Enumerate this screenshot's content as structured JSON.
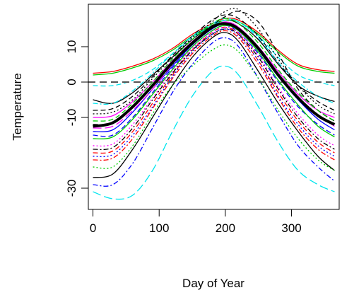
{
  "chart_data": {
    "type": "line",
    "xlabel": "Day of Year",
    "ylabel": "Temperature",
    "xlim": [
      -7,
      372
    ],
    "ylim": [
      -36,
      22
    ],
    "xticks": [
      0,
      100,
      200,
      300
    ],
    "yticks": [
      -30,
      -10,
      0,
      10
    ],
    "grid": false,
    "legend": "none",
    "reference_line": {
      "y": 0,
      "style": "dashed",
      "color": "#555555"
    },
    "mean_curve": {
      "color": "#000000",
      "x": [
        0,
        30,
        60,
        90,
        120,
        150,
        180,
        200,
        220,
        250,
        280,
        310,
        340,
        365
      ],
      "values": [
        -12.5,
        -11.5,
        -7,
        -1,
        5.5,
        11,
        15.5,
        16.5,
        15,
        9.5,
        2,
        -4.5,
        -9.5,
        -12
      ]
    },
    "series": [
      {
        "color": "#000000",
        "style": "solid",
        "x": [
          0,
          30,
          60,
          90,
          120,
          150,
          180,
          200,
          220,
          250,
          280,
          310,
          340,
          365
        ],
        "values": [
          -27,
          -26,
          -19,
          -10,
          -1,
          7,
          12.5,
          14,
          11.5,
          3,
          -6,
          -14,
          -21,
          -25
        ]
      },
      {
        "color": "#000000",
        "style": "solid",
        "x": [
          0,
          30,
          60,
          90,
          120,
          150,
          180,
          200,
          220,
          250,
          280,
          310,
          340,
          365
        ],
        "values": [
          -5,
          -6,
          -3,
          2,
          7,
          12,
          16,
          17.5,
          16.5,
          12,
          5,
          -1,
          -4,
          -5.5
        ]
      },
      {
        "color": "#ff0000",
        "style": "solid",
        "x": [
          0,
          30,
          60,
          90,
          120,
          150,
          180,
          200,
          220,
          250,
          280,
          310,
          340,
          365
        ],
        "values": [
          2.5,
          3,
          4.5,
          6.5,
          9.5,
          13.5,
          16.5,
          18,
          17.5,
          14,
          9,
          5,
          3.5,
          3
        ]
      },
      {
        "color": "#00cc00",
        "style": "solid",
        "x": [
          0,
          30,
          60,
          90,
          120,
          150,
          180,
          200,
          220,
          250,
          280,
          310,
          340,
          365
        ],
        "values": [
          2,
          2.5,
          4,
          6,
          9,
          13,
          16,
          17.5,
          17,
          13.5,
          8.5,
          4.5,
          3,
          2.5
        ]
      },
      {
        "color": "#0000ff",
        "style": "dashdot",
        "x": [
          0,
          30,
          60,
          90,
          120,
          150,
          180,
          200,
          220,
          250,
          280,
          310,
          340,
          365
        ],
        "values": [
          -29,
          -29,
          -23,
          -13,
          -3,
          5,
          11,
          12.5,
          10,
          1,
          -9,
          -18,
          -24,
          -28
        ]
      },
      {
        "color": "#00e5ee",
        "style": "longdash",
        "x": [
          0,
          30,
          60,
          90,
          120,
          150,
          180,
          200,
          220,
          250,
          280,
          310,
          340,
          365
        ],
        "values": [
          -31,
          -33,
          -32,
          -25,
          -14,
          -4,
          3,
          4.5,
          2,
          -7,
          -17,
          -25,
          -29,
          -31
        ]
      },
      {
        "color": "#00e5ee",
        "style": "dashed",
        "x": [
          0,
          30,
          60,
          90,
          120,
          150,
          180,
          200,
          220,
          250,
          280,
          310,
          340,
          365
        ],
        "values": [
          -1,
          -1,
          0.5,
          3.5,
          8,
          12.5,
          16,
          17.5,
          17,
          13,
          7,
          2,
          0,
          -1
        ]
      },
      {
        "color": "#ff0000",
        "style": "dashed",
        "x": [
          0,
          30,
          60,
          90,
          120,
          150,
          180,
          200,
          220,
          250,
          280,
          310,
          340,
          365
        ],
        "values": [
          -20,
          -19.5,
          -14,
          -6,
          2,
          9,
          14,
          15.5,
          13.5,
          6,
          -3,
          -11,
          -17,
          -20
        ]
      },
      {
        "color": "#00cc00",
        "style": "dotted",
        "x": [
          0,
          30,
          60,
          90,
          120,
          150,
          180,
          200,
          220,
          250,
          280,
          310,
          340,
          365
        ],
        "values": [
          -24,
          -24,
          -18,
          -9,
          -1,
          4.5,
          9,
          10.5,
          8.5,
          1,
          -8,
          -16,
          -22,
          -25
        ]
      },
      {
        "color": "#ff00ff",
        "style": "solid",
        "x": [
          0,
          30,
          60,
          90,
          120,
          150,
          180,
          200,
          220,
          250,
          280,
          310,
          340,
          365
        ],
        "values": [
          -10,
          -9.5,
          -5.5,
          0,
          6,
          11.5,
          15.5,
          17,
          15.5,
          10,
          3,
          -3.5,
          -8,
          -10
        ]
      },
      {
        "color": "#0000ff",
        "style": "dashed",
        "x": [
          0,
          30,
          60,
          90,
          120,
          150,
          180,
          200,
          220,
          250,
          280,
          310,
          340,
          365
        ],
        "values": [
          -15,
          -15,
          -10,
          -3,
          4,
          10,
          14.5,
          16,
          14,
          8,
          0,
          -7,
          -12,
          -15
        ]
      },
      {
        "color": "#000000",
        "style": "dashed",
        "x": [
          0,
          30,
          60,
          90,
          120,
          150,
          180,
          200,
          220,
          250,
          280,
          310,
          340,
          365
        ],
        "values": [
          -8,
          -7.5,
          -4,
          1.5,
          7.5,
          13,
          17.5,
          19,
          18,
          13,
          5.5,
          -1,
          -5.5,
          -8
        ]
      },
      {
        "color": "#ff00ff",
        "style": "dotted",
        "x": [
          0,
          30,
          60,
          90,
          120,
          150,
          180,
          200,
          220,
          250,
          280,
          310,
          340,
          365
        ],
        "values": [
          -18,
          -17.5,
          -12,
          -4.5,
          3,
          9.5,
          14,
          15.5,
          14,
          7.5,
          -1.5,
          -9,
          -15,
          -18
        ]
      },
      {
        "color": "#000000",
        "style": "dashed",
        "x": [
          0,
          30,
          60,
          90,
          120,
          150,
          180,
          200,
          220,
          250,
          280,
          310,
          340,
          365
        ],
        "values": [
          -12,
          -11.5,
          -7,
          -1,
          5,
          11,
          16,
          18.5,
          20,
          17,
          8,
          -2,
          -8,
          -11
        ]
      },
      {
        "color": "#0000ff",
        "style": "solid",
        "x": [
          0,
          30,
          60,
          90,
          120,
          150,
          180,
          200,
          220,
          250,
          280,
          310,
          340,
          365
        ],
        "values": [
          -14,
          -13.5,
          -8.5,
          -2,
          4.5,
          10.5,
          15,
          16.5,
          15,
          9,
          1.5,
          -5,
          -10.5,
          -13.5
        ]
      },
      {
        "color": "#00cc00",
        "style": "solid",
        "x": [
          0,
          30,
          60,
          90,
          120,
          150,
          180,
          200,
          220,
          250,
          280,
          310,
          340,
          365
        ],
        "values": [
          -16,
          -15.5,
          -10.5,
          -3.5,
          3.5,
          10,
          14.5,
          16,
          14.5,
          8.5,
          0.5,
          -6.5,
          -12.5,
          -15.5
        ]
      },
      {
        "color": "#ff0000",
        "style": "dashdot",
        "x": [
          0,
          30,
          60,
          90,
          120,
          150,
          180,
          200,
          220,
          250,
          280,
          310,
          340,
          365
        ],
        "values": [
          -22,
          -21.5,
          -16,
          -7.5,
          1,
          8,
          13,
          14.5,
          12.5,
          5,
          -4.5,
          -13,
          -19,
          -22
        ]
      },
      {
        "color": "#000000",
        "style": "dashdot",
        "x": [
          0,
          30,
          60,
          90,
          120,
          150,
          180,
          200,
          220,
          250,
          280,
          310,
          340,
          365
        ],
        "values": [
          -19,
          -18.5,
          -13,
          -5,
          2.5,
          9,
          13.5,
          15,
          13.5,
          7,
          -2,
          -10,
          -16,
          -19
        ]
      },
      {
        "color": "#00e5ee",
        "style": "dashdot",
        "x": [
          0,
          30,
          60,
          90,
          120,
          150,
          180,
          200,
          220,
          250,
          280,
          310,
          340,
          365
        ],
        "values": [
          -6,
          -6,
          -2.5,
          2.5,
          8,
          13,
          16.5,
          18,
          17,
          12.5,
          5.5,
          0,
          -4,
          -6
        ]
      },
      {
        "color": "#00cc00",
        "style": "dashed",
        "x": [
          0,
          30,
          60,
          90,
          120,
          150,
          180,
          200,
          220,
          250,
          280,
          310,
          340,
          365
        ],
        "values": [
          -11,
          -10.5,
          -6,
          0,
          6.5,
          12,
          16.5,
          18,
          16.5,
          11,
          3.5,
          -3,
          -8,
          -11
        ]
      },
      {
        "color": "#ff00ff",
        "style": "longdash",
        "x": [
          0,
          30,
          60,
          90,
          120,
          150,
          180,
          200,
          220,
          250,
          280,
          310,
          340,
          365
        ],
        "values": [
          -13,
          -12.5,
          -8,
          -2,
          5,
          11,
          15.5,
          17,
          15.5,
          9.5,
          2,
          -4.5,
          -9.5,
          -12.5
        ]
      },
      {
        "color": "#0000ff",
        "style": "dotted",
        "x": [
          0,
          30,
          60,
          90,
          120,
          150,
          180,
          200,
          220,
          250,
          280,
          310,
          340,
          365
        ],
        "values": [
          -21,
          -20.5,
          -15,
          -7,
          1.5,
          8.5,
          13.5,
          15,
          13,
          6,
          -4,
          -12,
          -18,
          -21
        ]
      },
      {
        "color": "#000000",
        "style": "dotted",
        "x": [
          0,
          30,
          60,
          90,
          120,
          150,
          180,
          200,
          220,
          250,
          280,
          310,
          340,
          365
        ],
        "values": [
          -9,
          -8.5,
          -5,
          1,
          7,
          12.5,
          17,
          20,
          20.5,
          15,
          6.5,
          -1,
          -6.5,
          -9
        ]
      }
    ]
  }
}
